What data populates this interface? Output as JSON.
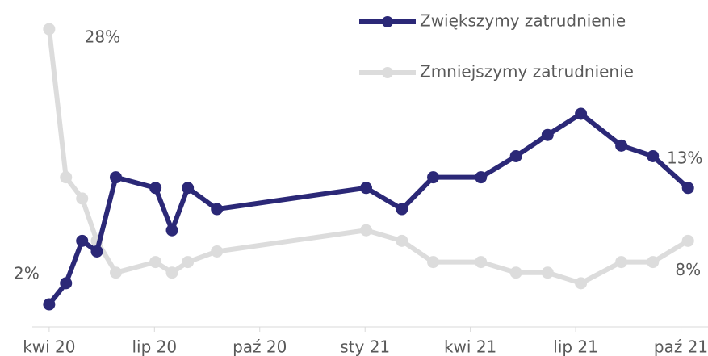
{
  "chart_data": {
    "type": "line",
    "x": [
      0,
      0.48,
      0.94,
      1.36,
      1.9,
      3.03,
      3.5,
      3.95,
      4.78,
      9.03,
      10.05,
      10.94,
      12.3,
      13.3,
      14.2,
      15.15,
      16.3,
      17.2,
      18.2
    ],
    "xlim": [
      -1.4,
      18.77
    ],
    "xticks": [
      {
        "value": 0,
        "label": "kwi 20"
      },
      {
        "value": 3,
        "label": "lip 20"
      },
      {
        "value": 6,
        "label": "paź 20"
      },
      {
        "value": 9,
        "label": "sty 21"
      },
      {
        "value": 12,
        "label": "kwi 21"
      },
      {
        "value": 15,
        "label": "lip 21"
      },
      {
        "value": 18,
        "label": "paź 21"
      }
    ],
    "ylim": [
      0.25,
      30.75
    ],
    "legend": "top-right",
    "series": [
      {
        "name": "Zwiększymy zatrudnienie",
        "color": "#2b2877",
        "values": [
          2,
          4,
          8,
          7,
          14,
          13,
          9,
          13,
          11,
          13,
          11,
          14,
          14,
          16,
          18,
          20,
          17,
          16,
          13
        ],
        "value_labels": [
          "2%",
          null,
          null,
          null,
          null,
          null,
          null,
          null,
          null,
          null,
          null,
          null,
          null,
          null,
          null,
          null,
          null,
          null,
          "13%"
        ]
      },
      {
        "name": "Zmniejszymy zatrudnienie",
        "color": "#dcdcdc",
        "values": [
          28,
          14,
          12,
          8,
          5,
          6,
          5,
          6,
          7,
          9,
          8,
          6,
          6,
          5,
          5,
          4,
          6,
          6,
          8
        ],
        "value_labels": [
          "28%",
          null,
          null,
          null,
          null,
          null,
          null,
          null,
          null,
          null,
          null,
          null,
          null,
          null,
          null,
          null,
          null,
          null,
          "8%"
        ]
      }
    ]
  }
}
